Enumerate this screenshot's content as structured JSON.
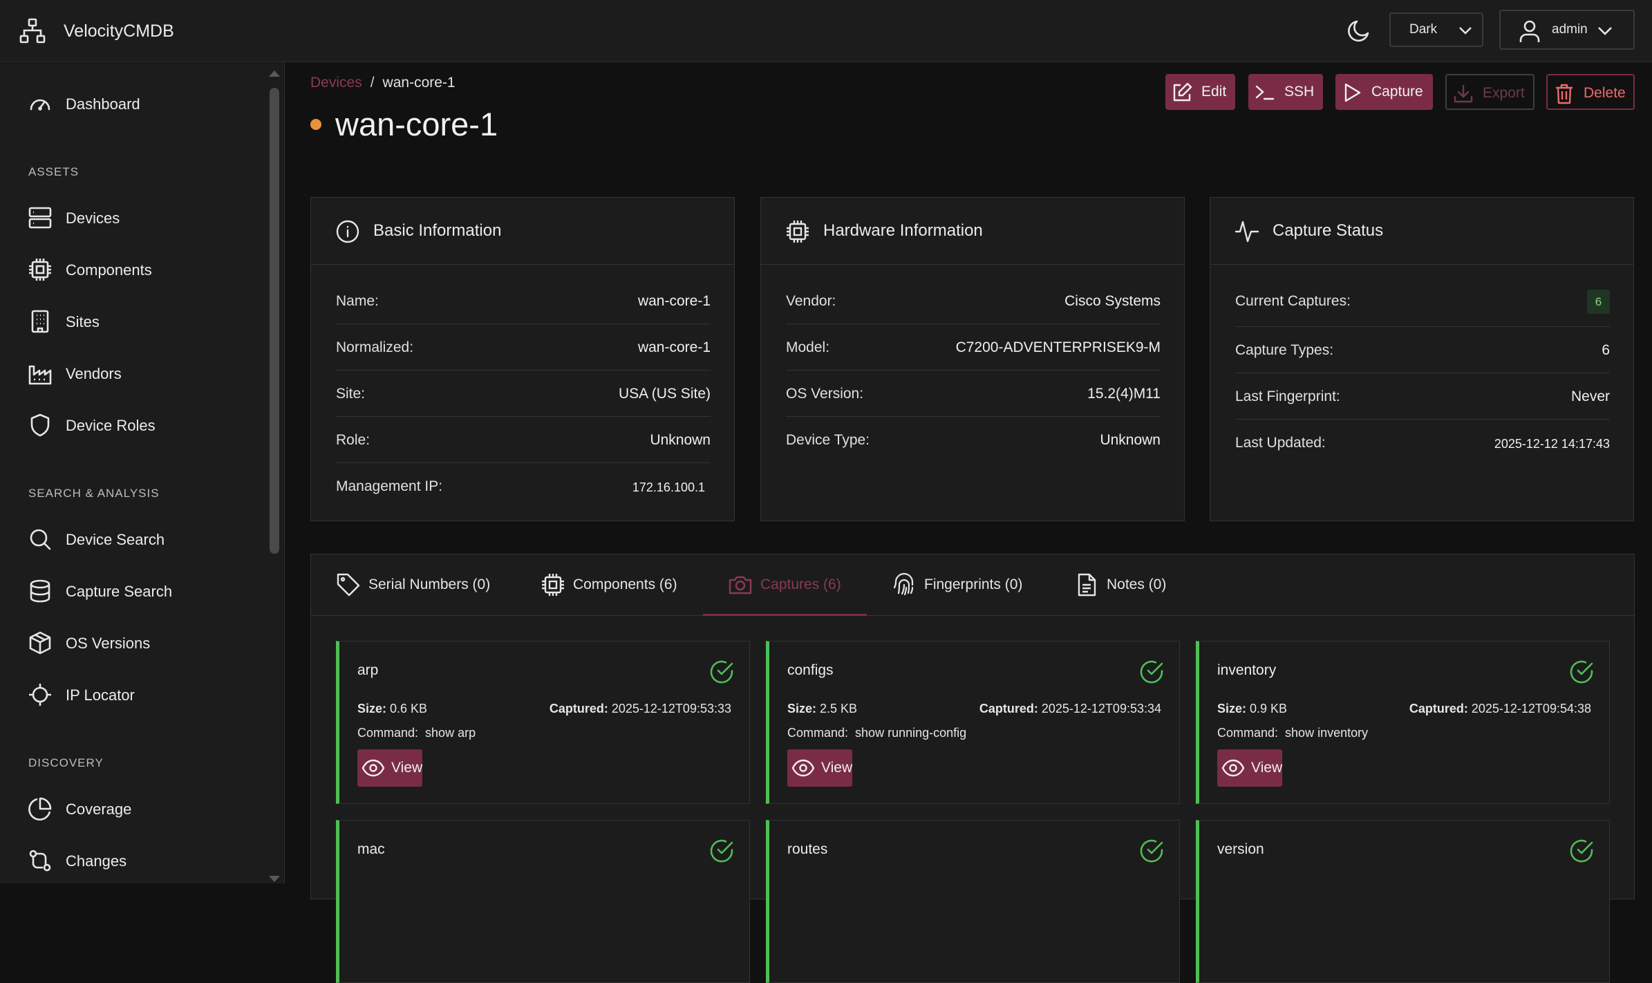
{
  "app": {
    "name": "VelocityCMDB"
  },
  "header": {
    "theme_value": "Dark",
    "user_name": "admin"
  },
  "sidebar": {
    "top_items": [
      {
        "label": "Dashboard",
        "icon": "gauge-icon"
      }
    ],
    "sections": [
      {
        "title": "ASSETS",
        "items": [
          {
            "label": "Devices",
            "icon": "server-icon"
          },
          {
            "label": "Components",
            "icon": "chip-icon"
          },
          {
            "label": "Sites",
            "icon": "building-icon"
          },
          {
            "label": "Vendors",
            "icon": "factory-icon"
          },
          {
            "label": "Device Roles",
            "icon": "shield-icon"
          }
        ]
      },
      {
        "title": "SEARCH & ANALYSIS",
        "items": [
          {
            "label": "Device Search",
            "icon": "search-icon"
          },
          {
            "label": "Capture Search",
            "icon": "database-icon"
          },
          {
            "label": "OS Versions",
            "icon": "box-icon"
          },
          {
            "label": "IP Locator",
            "icon": "crosshair-icon"
          }
        ]
      },
      {
        "title": "DISCOVERY",
        "items": [
          {
            "label": "Coverage",
            "icon": "pie-icon"
          },
          {
            "label": "Changes",
            "icon": "git-compare-icon"
          }
        ]
      }
    ]
  },
  "breadcrumb": {
    "parent": "Devices",
    "separator": "/",
    "current": "wan-core-1"
  },
  "device": {
    "title": "wan-core-1",
    "status_color": "#e9923e"
  },
  "actions": {
    "edit": "Edit",
    "ssh": "SSH",
    "capture": "Capture",
    "export": "Export",
    "delete": "Delete"
  },
  "basic_info": {
    "title": "Basic Information",
    "rows": [
      {
        "key": "Name:",
        "value": "wan-core-1"
      },
      {
        "key": "Normalized:",
        "value": "wan-core-1"
      },
      {
        "key": "Site:",
        "value": "USA (US Site)"
      },
      {
        "key": "Role:",
        "value": "Unknown"
      },
      {
        "key": "Management IP:",
        "value": "172.16.100.1"
      }
    ]
  },
  "hardware_info": {
    "title": "Hardware Information",
    "rows": [
      {
        "key": "Vendor:",
        "value": "Cisco Systems"
      },
      {
        "key": "Model:",
        "value": "C7200-ADVENTERPRISEK9-M"
      },
      {
        "key": "OS Version:",
        "value": "15.2(4)M11"
      },
      {
        "key": "Device Type:",
        "value": "Unknown"
      }
    ]
  },
  "capture_status": {
    "title": "Capture Status",
    "rows": [
      {
        "key": "Current Captures:",
        "value": "6"
      },
      {
        "key": "Capture Types:",
        "value": "6"
      },
      {
        "key": "Last Fingerprint:",
        "value": "Never"
      },
      {
        "key": "Last Updated:",
        "value": "2025-12-12 14:17:43"
      }
    ]
  },
  "tabs": [
    {
      "label": "Serial Numbers (0)",
      "icon": "tag-icon"
    },
    {
      "label": "Components (6)",
      "icon": "chip-icon"
    },
    {
      "label": "Captures (6)",
      "icon": "camera-icon",
      "active": true
    },
    {
      "label": "Fingerprints (0)",
      "icon": "fingerprint-icon"
    },
    {
      "label": "Notes (0)",
      "icon": "document-icon"
    }
  ],
  "captures": {
    "size_label": "Size:",
    "captured_label": "Captured:",
    "command_label": "Command:",
    "view_label": "View",
    "items": [
      {
        "name": "arp",
        "size": "0.6 KB",
        "captured": "2025-12-12T09:53:33",
        "command": "show arp"
      },
      {
        "name": "configs",
        "size": "2.5 KB",
        "captured": "2025-12-12T09:53:34",
        "command": "show running-config"
      },
      {
        "name": "inventory",
        "size": "0.9 KB",
        "captured": "2025-12-12T09:54:38",
        "command": "show inventory"
      },
      {
        "name": "mac"
      },
      {
        "name": "routes"
      },
      {
        "name": "version"
      }
    ]
  },
  "colors": {
    "accent": "#7a2c47",
    "success": "#4fbf55",
    "background": "#111111",
    "panel": "#1c1c1c"
  }
}
